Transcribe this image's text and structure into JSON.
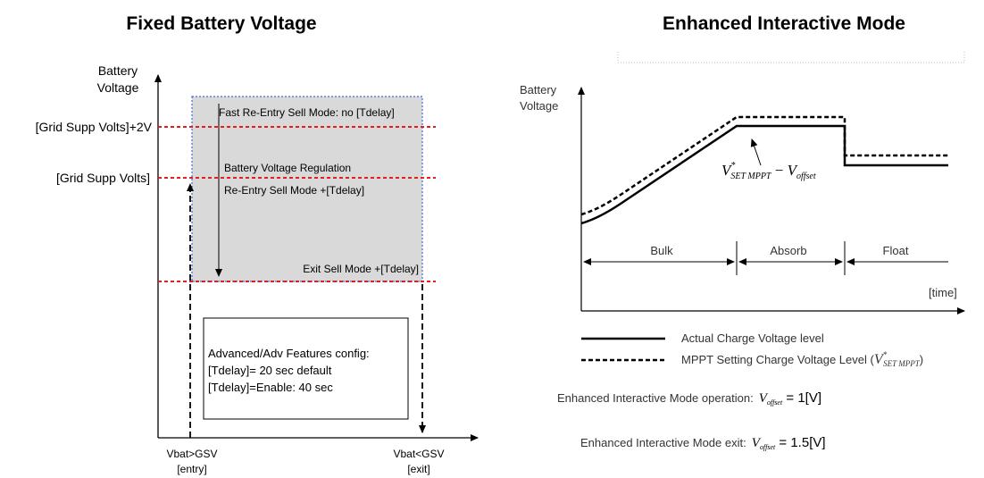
{
  "left_panel": {
    "title": "Fixed Battery Voltage",
    "y_axis_label": [
      "Battery",
      "Voltage"
    ],
    "level_labels": [
      "[Grid Supp Volts]+2V",
      "[Grid Supp Volts]"
    ],
    "box_texts": {
      "fast_reentry": "Fast Re-Entry Sell Mode: no [Tdelay]",
      "regulation": "Battery Voltage Regulation",
      "reentry": "Re-Entry Sell Mode +[Tdelay]",
      "exit": "Exit Sell Mode +[Tdelay]"
    },
    "config_box": {
      "lines": [
        "Advanced/Adv Features config:",
        "[Tdelay]= 20 sec default",
        "[Tdelay]=Enable: 40 sec"
      ]
    },
    "x_labels": {
      "entry": [
        "Vbat>GSV",
        "[entry]"
      ],
      "exit": [
        "Vbat<GSV",
        "[exit]"
      ]
    },
    "colors": {
      "level_line": "#e02020",
      "box_fill": "#d9d9d9",
      "box_border": "#3a6fd8"
    }
  },
  "right_panel": {
    "title": "Enhanced Interactive Mode",
    "y_axis_label": [
      "Battery",
      "Voltage"
    ],
    "stages": [
      "Bulk",
      "Absorb",
      "Float"
    ],
    "x_axis_label": "[time]",
    "curve_label": {
      "v": "V",
      "v_sup": "*",
      "v_sub": "SET MPPT",
      "minus": " − ",
      "v2": "V",
      "v2_sub": "offset"
    },
    "legend": [
      {
        "style": "solid",
        "label": "Actual Charge Voltage level"
      },
      {
        "style": "dashed",
        "label": "MPPT Setting Charge Voltage Level (",
        "math": "V",
        "sup": "*",
        "sub": "SET MPPT",
        "close": ")"
      }
    ],
    "operation": {
      "label": "Enhanced Interactive Mode operation:",
      "var": "V",
      "sub": "offset",
      "value": " = 1[V]"
    },
    "exit": {
      "label": "Enhanced Interactive Mode exit:",
      "var": "V",
      "sub": "offset",
      "value": " = 1.5[V]"
    }
  }
}
